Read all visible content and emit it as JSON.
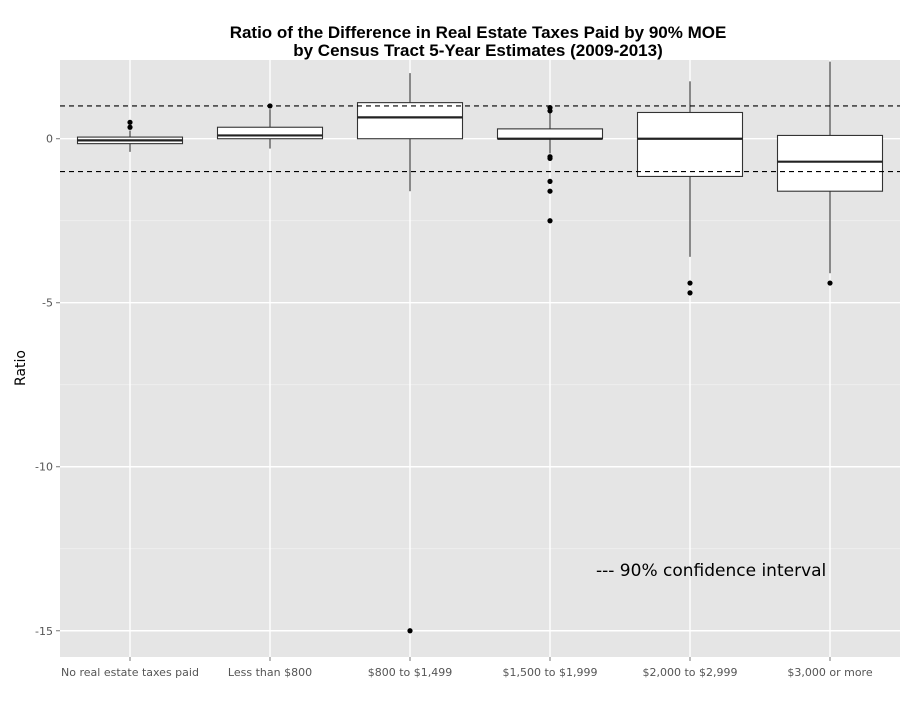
{
  "chart_data": {
    "type": "box",
    "title": "Ratio of the Difference in Real Estate Taxes Paid by 90% MOE",
    "subtitle": "by Census Tract 5-Year Estimates (2009-2013)",
    "xlabel": "",
    "ylabel": "Ratio",
    "ylim": [
      -15.8,
      2.4
    ],
    "yticks": [
      0,
      -5,
      -10,
      -15
    ],
    "grid": true,
    "reference_lines": [
      1,
      -1
    ],
    "annotation": "--- 90% confidence interval",
    "categories": [
      "No real estate taxes paid",
      "Less than $800",
      "$800 to $1,499",
      "$1,500 to $1,999",
      "$2,000 to $2,999",
      "$3,000 or more"
    ],
    "boxes": [
      {
        "lower_whisker": -0.4,
        "q1": -0.15,
        "median": -0.05,
        "q3": 0.05,
        "upper_whisker": 0.25,
        "outliers": [
          0.35,
          0.5
        ]
      },
      {
        "lower_whisker": -0.3,
        "q1": 0.0,
        "median": 0.1,
        "q3": 0.35,
        "upper_whisker": 0.9,
        "outliers": [
          1.0
        ]
      },
      {
        "lower_whisker": -1.6,
        "q1": 0.0,
        "median": 0.65,
        "q3": 1.1,
        "upper_whisker": 2.0,
        "outliers": [
          -15.0
        ]
      },
      {
        "lower_whisker": -0.45,
        "q1": 0.0,
        "median": 0.0,
        "q3": 0.3,
        "upper_whisker": 0.8,
        "outliers": [
          0.85,
          0.95,
          -0.55,
          -0.6,
          -1.3,
          -1.6,
          -2.5
        ]
      },
      {
        "lower_whisker": -3.6,
        "q1": -1.15,
        "median": 0.0,
        "q3": 0.8,
        "upper_whisker": 1.75,
        "outliers": [
          -4.4,
          -4.7
        ]
      },
      {
        "lower_whisker": -4.1,
        "q1": -1.6,
        "median": -0.7,
        "q3": 0.1,
        "upper_whisker": 2.35,
        "outliers": [
          -4.4
        ]
      }
    ]
  }
}
